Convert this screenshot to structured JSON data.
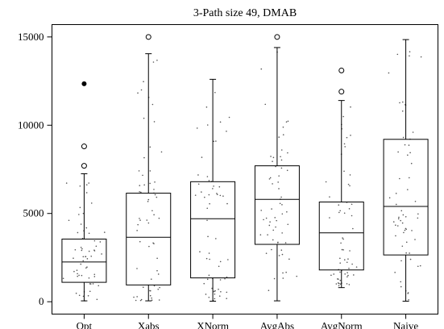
{
  "chart_data": {
    "type": "boxplot",
    "title": "3-Path size 49, DMAB",
    "xlabel": "",
    "ylabel": "",
    "ylim": [
      -700,
      15700
    ],
    "yticks": [
      0,
      5000,
      10000,
      15000
    ],
    "yticklabels": [
      "0",
      "5000",
      "10000",
      "15000"
    ],
    "grid": false,
    "legend": "none",
    "categories": [
      "Opt",
      "Xabs",
      "XNorm",
      "AvgAbs",
      "AvgNorm",
      "Naive"
    ],
    "boxes": [
      {
        "name": "Opt",
        "whisker_low": 50,
        "q1": 1100,
        "median": 2250,
        "q3": 3550,
        "whisker_high": 7250,
        "outliers": [
          7700,
          8800
        ],
        "extreme_outliers": [
          12350
        ]
      },
      {
        "name": "Xabs",
        "whisker_low": 50,
        "q1": 950,
        "median": 3650,
        "q3": 6150,
        "whisker_high": 14050,
        "outliers": [
          15000
        ],
        "extreme_outliers": []
      },
      {
        "name": "XNorm",
        "whisker_low": 30,
        "q1": 1350,
        "median": 4700,
        "q3": 6800,
        "whisker_high": 12600,
        "outliers": [],
        "extreme_outliers": []
      },
      {
        "name": "AvgAbs",
        "whisker_low": 50,
        "q1": 3250,
        "median": 5800,
        "q3": 7700,
        "whisker_high": 14400,
        "outliers": [
          15000
        ],
        "extreme_outliers": []
      },
      {
        "name": "AvgNorm",
        "whisker_low": 800,
        "q1": 1800,
        "median": 3900,
        "q3": 5650,
        "whisker_high": 11400,
        "outliers": [
          11900,
          13100
        ],
        "extreme_outliers": []
      },
      {
        "name": "Naive",
        "whisker_low": 30,
        "q1": 2650,
        "median": 5400,
        "q3": 9200,
        "whisker_high": 14850,
        "outliers": [],
        "extreme_outliers": []
      }
    ],
    "colors": {
      "box": "#000000",
      "jitter": "#555555"
    }
  }
}
